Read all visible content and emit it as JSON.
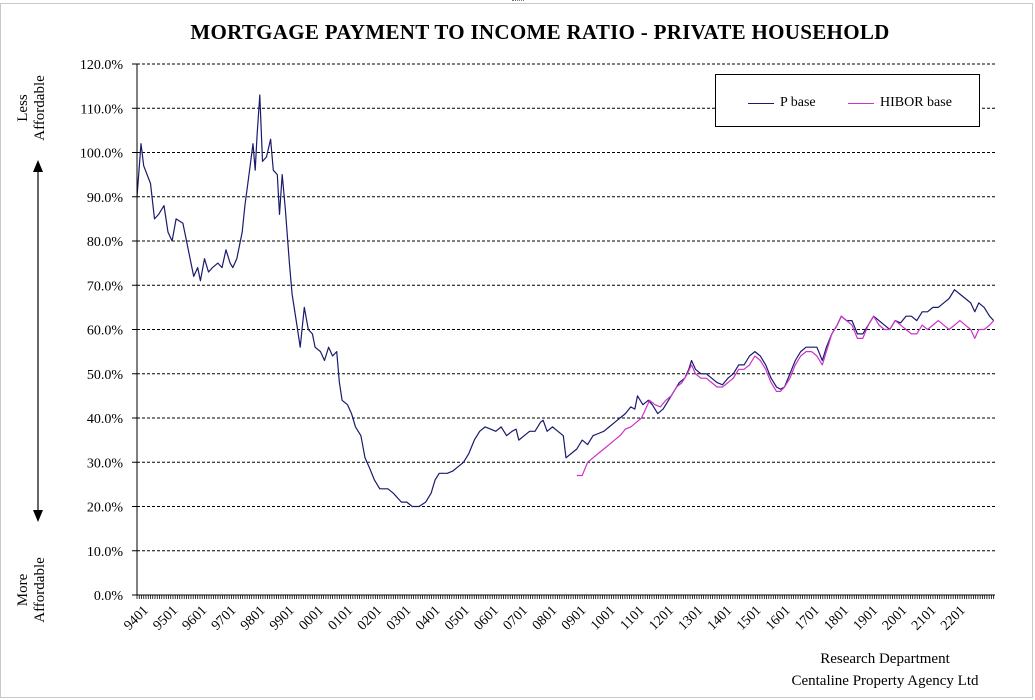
{
  "chart_data": {
    "type": "line",
    "title": "MORTGAGE PAYMENT TO INCOME RATIO - PRIVATE HOUSEHOLD",
    "annotations": {
      "top_label": [
        "Less",
        "Affordable"
      ],
      "bottom_label": [
        "More",
        "Affordable"
      ]
    },
    "credits": [
      "Research Department",
      "Centaline Property Agency Ltd"
    ],
    "y_axis": {
      "min": 0,
      "max": 120,
      "step": 10,
      "format": "percent",
      "tick_labels": [
        "0.0%",
        "10.0%",
        "20.0%",
        "30.0%",
        "40.0%",
        "50.0%",
        "60.0%",
        "70.0%",
        "80.0%",
        "90.0%",
        "100.0%",
        "110.0%",
        "120.0%"
      ],
      "grid": "dashed"
    },
    "x_axis": {
      "tick_labels": [
        "9401",
        "9501",
        "9601",
        "9701",
        "9801",
        "9901",
        "0001",
        "0101",
        "0201",
        "0301",
        "0401",
        "0501",
        "0601",
        "0701",
        "0801",
        "0901",
        "1001",
        "1101",
        "1201",
        "1301",
        "1401",
        "1501",
        "1601",
        "1701",
        "1801",
        "1901",
        "2001",
        "2101",
        "2201"
      ],
      "start_year": 1994,
      "end_year": 2022.85
    },
    "legend": {
      "placement": "top-right"
    },
    "series": [
      {
        "name": "P base",
        "color": "#1a1a6e",
        "points": [
          [
            1994.0,
            90
          ],
          [
            1994.15,
            102
          ],
          [
            1994.25,
            97
          ],
          [
            1994.5,
            93
          ],
          [
            1994.65,
            85
          ],
          [
            1994.8,
            86
          ],
          [
            1995.0,
            88
          ],
          [
            1995.15,
            82
          ],
          [
            1995.3,
            80
          ],
          [
            1995.45,
            85
          ],
          [
            1995.7,
            84
          ],
          [
            1995.9,
            78
          ],
          [
            1996.1,
            72
          ],
          [
            1996.25,
            74
          ],
          [
            1996.35,
            71
          ],
          [
            1996.5,
            76
          ],
          [
            1996.65,
            73
          ],
          [
            1996.8,
            74
          ],
          [
            1997.0,
            75
          ],
          [
            1997.15,
            74
          ],
          [
            1997.3,
            78
          ],
          [
            1997.45,
            75
          ],
          [
            1997.55,
            74
          ],
          [
            1997.7,
            76
          ],
          [
            1997.9,
            82
          ],
          [
            1998.0,
            88
          ],
          [
            1998.15,
            95
          ],
          [
            1998.3,
            102
          ],
          [
            1998.38,
            96
          ],
          [
            1998.45,
            104
          ],
          [
            1998.55,
            113
          ],
          [
            1998.65,
            98
          ],
          [
            1998.8,
            99
          ],
          [
            1998.95,
            103
          ],
          [
            1999.05,
            96
          ],
          [
            1999.2,
            95
          ],
          [
            1999.28,
            86
          ],
          [
            1999.38,
            95
          ],
          [
            1999.5,
            87
          ],
          [
            1999.65,
            75
          ],
          [
            1999.75,
            68
          ],
          [
            1999.9,
            62
          ],
          [
            2000.05,
            56
          ],
          [
            2000.2,
            65
          ],
          [
            2000.35,
            60
          ],
          [
            2000.5,
            59
          ],
          [
            2000.6,
            56
          ],
          [
            2000.8,
            55
          ],
          [
            2000.95,
            53
          ],
          [
            2001.1,
            56
          ],
          [
            2001.25,
            54
          ],
          [
            2001.4,
            55
          ],
          [
            2001.5,
            48
          ],
          [
            2001.6,
            44
          ],
          [
            2001.8,
            43
          ],
          [
            2001.95,
            41
          ],
          [
            2002.1,
            38
          ],
          [
            2002.3,
            36
          ],
          [
            2002.45,
            31
          ],
          [
            2002.6,
            29
          ],
          [
            2002.8,
            26
          ],
          [
            2003.0,
            24
          ],
          [
            2003.3,
            24
          ],
          [
            2003.5,
            23
          ],
          [
            2003.8,
            21
          ],
          [
            2004.0,
            21
          ],
          [
            2004.2,
            20
          ],
          [
            2004.45,
            20
          ],
          [
            2004.7,
            21
          ],
          [
            2004.9,
            23
          ],
          [
            2005.05,
            26
          ],
          [
            2005.2,
            27.5
          ],
          [
            2005.5,
            27.5
          ],
          [
            2005.7,
            28
          ],
          [
            2005.9,
            29
          ],
          [
            2006.1,
            30
          ],
          [
            2006.3,
            32
          ],
          [
            2006.5,
            35
          ],
          [
            2006.7,
            37
          ],
          [
            2006.9,
            38
          ],
          [
            2007.1,
            37.5
          ],
          [
            2007.3,
            37
          ],
          [
            2007.5,
            38
          ],
          [
            2007.7,
            36
          ],
          [
            2007.9,
            37
          ],
          [
            2008.05,
            37.5
          ],
          [
            2008.15,
            35
          ],
          [
            2008.35,
            36
          ],
          [
            2008.55,
            37
          ],
          [
            2008.75,
            37
          ],
          [
            2008.95,
            39
          ],
          [
            2009.05,
            39.5
          ],
          [
            2009.2,
            37
          ],
          [
            2009.4,
            38
          ],
          [
            2009.6,
            37
          ],
          [
            2009.8,
            36
          ],
          [
            2009.9,
            31
          ],
          [
            2010.1,
            32
          ],
          [
            2010.3,
            33
          ],
          [
            2010.5,
            35
          ],
          [
            2010.7,
            34
          ],
          [
            2010.9,
            36
          ],
          [
            2011.1,
            36.5
          ],
          [
            2011.3,
            37
          ],
          [
            2011.5,
            38
          ],
          [
            2011.7,
            39
          ],
          [
            2011.9,
            40
          ],
          [
            2012.1,
            41
          ],
          [
            2012.3,
            42.5
          ],
          [
            2012.45,
            42
          ],
          [
            2012.55,
            45
          ],
          [
            2012.75,
            43
          ],
          [
            2012.95,
            44
          ],
          [
            2013.1,
            43
          ],
          [
            2013.3,
            41
          ],
          [
            2013.5,
            42
          ],
          [
            2013.7,
            44
          ],
          [
            2013.9,
            46
          ],
          [
            2014.1,
            48
          ],
          [
            2014.3,
            49
          ],
          [
            2014.45,
            51
          ],
          [
            2014.55,
            53
          ],
          [
            2014.7,
            51
          ],
          [
            2014.9,
            50
          ],
          [
            2015.1,
            50
          ],
          [
            2015.3,
            49
          ],
          [
            2015.5,
            48
          ],
          [
            2015.7,
            47.5
          ],
          [
            2015.9,
            49
          ],
          [
            2016.1,
            50
          ],
          [
            2016.3,
            52
          ],
          [
            2016.5,
            52
          ],
          [
            2016.7,
            54
          ],
          [
            2016.9,
            55
          ],
          [
            2017.1,
            54
          ],
          [
            2017.3,
            52
          ],
          [
            2017.5,
            49
          ],
          [
            2017.7,
            47
          ],
          [
            2017.85,
            46.5
          ],
          [
            2018.0,
            47
          ],
          [
            2018.2,
            50
          ],
          [
            2018.4,
            53
          ],
          [
            2018.6,
            55
          ],
          [
            2018.8,
            56
          ],
          [
            2019.0,
            56
          ],
          [
            2019.2,
            56
          ],
          [
            2019.4,
            53
          ],
          [
            2019.55,
            56
          ],
          [
            2019.75,
            59
          ],
          [
            2019.95,
            61
          ],
          [
            2020.1,
            63
          ],
          [
            2020.3,
            62
          ],
          [
            2020.5,
            62
          ],
          [
            2020.7,
            59
          ],
          [
            2020.9,
            59
          ],
          [
            2021.1,
            61
          ],
          [
            2021.3,
            63
          ],
          [
            2021.5,
            62
          ],
          [
            2021.7,
            61
          ],
          [
            2021.9,
            60
          ],
          [
            2022.1,
            62
          ],
          [
            2022.3,
            61.5
          ],
          [
            2022.5,
            63
          ],
          [
            2022.7,
            63
          ],
          [
            2022.9,
            62
          ],
          [
            2023.1,
            64
          ],
          [
            2023.3,
            64
          ],
          [
            2023.5,
            65
          ],
          [
            2023.7,
            65
          ],
          [
            2023.9,
            66
          ],
          [
            2024.1,
            67
          ],
          [
            2024.3,
            69
          ],
          [
            2024.5,
            68
          ],
          [
            2024.7,
            67
          ],
          [
            2024.9,
            66
          ],
          [
            2025.05,
            64
          ],
          [
            2025.2,
            66
          ],
          [
            2025.4,
            65
          ],
          [
            2025.6,
            63
          ],
          [
            2025.75,
            62
          ]
        ]
      },
      {
        "name": "HIBOR base",
        "color": "#cc33cc",
        "points": [
          [
            2010.3,
            27
          ],
          [
            2010.5,
            27
          ],
          [
            2010.7,
            30
          ],
          [
            2010.9,
            31
          ],
          [
            2011.1,
            32
          ],
          [
            2011.3,
            33
          ],
          [
            2011.5,
            34
          ],
          [
            2011.7,
            35
          ],
          [
            2011.9,
            36
          ],
          [
            2012.1,
            37.5
          ],
          [
            2012.3,
            38
          ],
          [
            2012.5,
            39
          ],
          [
            2012.7,
            40
          ],
          [
            2012.85,
            42
          ],
          [
            2013.0,
            44
          ],
          [
            2013.2,
            43
          ],
          [
            2013.4,
            42.5
          ],
          [
            2013.6,
            44
          ],
          [
            2013.8,
            45
          ],
          [
            2014.0,
            47
          ],
          [
            2014.2,
            48
          ],
          [
            2014.4,
            50
          ],
          [
            2014.55,
            52
          ],
          [
            2014.7,
            50
          ],
          [
            2014.9,
            49
          ],
          [
            2015.1,
            49
          ],
          [
            2015.3,
            48
          ],
          [
            2015.5,
            47
          ],
          [
            2015.7,
            47
          ],
          [
            2015.9,
            48
          ],
          [
            2016.1,
            49
          ],
          [
            2016.3,
            51
          ],
          [
            2016.5,
            51
          ],
          [
            2016.7,
            52
          ],
          [
            2016.9,
            54
          ],
          [
            2017.1,
            53
          ],
          [
            2017.3,
            51
          ],
          [
            2017.5,
            48
          ],
          [
            2017.7,
            46
          ],
          [
            2017.85,
            46
          ],
          [
            2018.0,
            47
          ],
          [
            2018.2,
            49
          ],
          [
            2018.4,
            52
          ],
          [
            2018.6,
            54
          ],
          [
            2018.8,
            55
          ],
          [
            2019.0,
            55
          ],
          [
            2019.2,
            54
          ],
          [
            2019.4,
            52
          ],
          [
            2019.55,
            55
          ],
          [
            2019.75,
            59
          ],
          [
            2019.95,
            61
          ],
          [
            2020.1,
            63
          ],
          [
            2020.3,
            62
          ],
          [
            2020.5,
            61
          ],
          [
            2020.7,
            58
          ],
          [
            2020.9,
            58
          ],
          [
            2021.1,
            61
          ],
          [
            2021.3,
            63
          ],
          [
            2021.5,
            61
          ],
          [
            2021.7,
            60
          ],
          [
            2021.9,
            60
          ],
          [
            2022.1,
            62
          ],
          [
            2022.3,
            61
          ],
          [
            2022.5,
            60
          ],
          [
            2022.7,
            59
          ],
          [
            2022.9,
            59
          ],
          [
            2023.1,
            61
          ],
          [
            2023.3,
            60
          ],
          [
            2023.5,
            61
          ],
          [
            2023.7,
            62
          ],
          [
            2023.9,
            61
          ],
          [
            2024.1,
            60
          ],
          [
            2024.3,
            61
          ],
          [
            2024.5,
            62
          ],
          [
            2024.7,
            61
          ],
          [
            2024.9,
            60
          ],
          [
            2025.05,
            58
          ],
          [
            2025.2,
            60
          ],
          [
            2025.4,
            60
          ],
          [
            2025.6,
            61
          ],
          [
            2025.75,
            62
          ]
        ]
      }
    ]
  }
}
